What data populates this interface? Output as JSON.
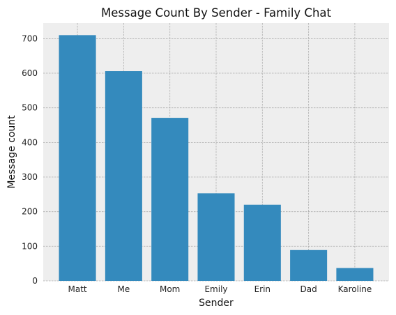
{
  "chart_data": {
    "type": "bar",
    "title": "Message Count By Sender - Family Chat",
    "xlabel": "Sender",
    "ylabel": "Message count",
    "categories": [
      "Matt",
      "Me",
      "Mom",
      "Emily",
      "Erin",
      "Dad",
      "Karoline"
    ],
    "values": [
      710,
      606,
      471,
      253,
      220,
      89,
      37
    ],
    "ylim": [
      0,
      745
    ],
    "yticks": [
      0,
      100,
      200,
      300,
      400,
      500,
      600,
      700
    ],
    "grid": true,
    "legend": "none",
    "colors": {
      "bar": "#348ABD",
      "plot_background": "#EEEEEE",
      "grid": "#B0B0B0"
    }
  }
}
